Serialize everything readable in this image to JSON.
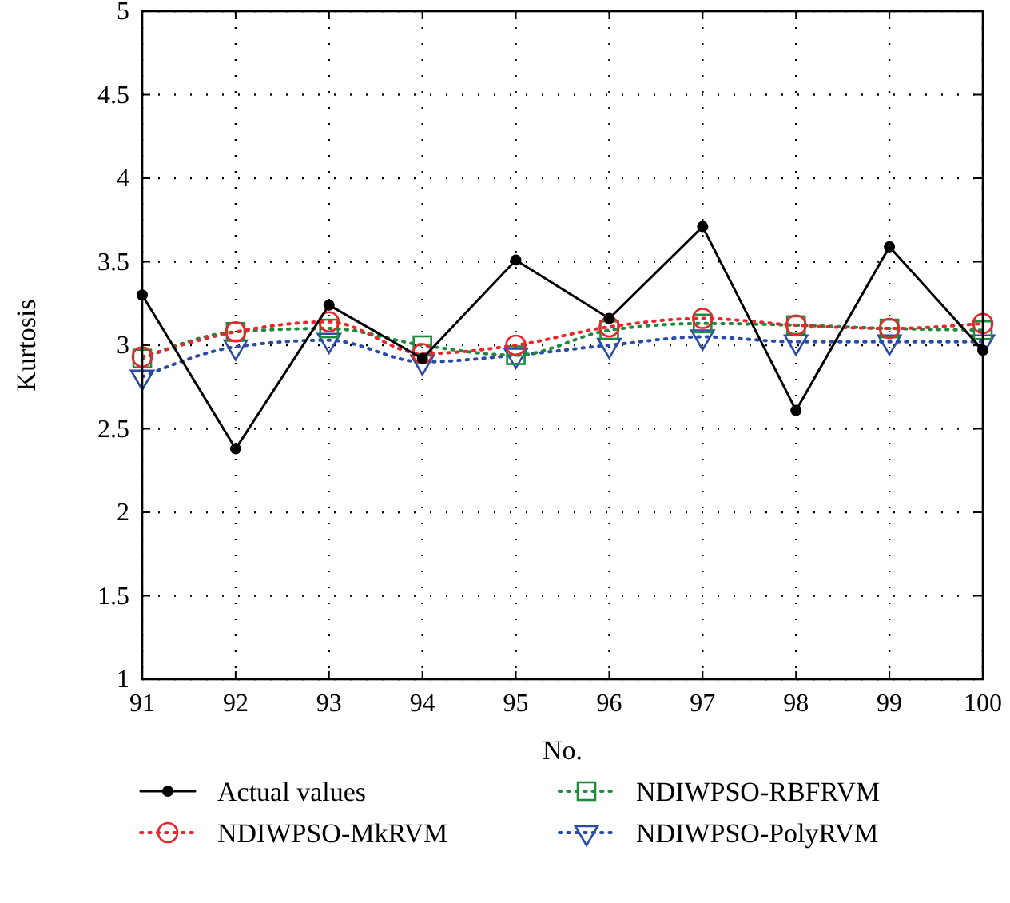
{
  "chart_data": {
    "type": "line",
    "xlabel": "No.",
    "ylabel": "Kurtosis",
    "x": [
      91,
      92,
      93,
      94,
      95,
      96,
      97,
      98,
      99,
      100
    ],
    "xlim": [
      91,
      100
    ],
    "xticks": [
      91,
      92,
      93,
      94,
      95,
      96,
      97,
      98,
      99,
      100
    ],
    "ylim": [
      1,
      5
    ],
    "yticks": [
      1,
      1.5,
      2,
      2.5,
      3,
      3.5,
      4,
      4.5,
      5
    ],
    "grid": true,
    "legend": "bottom",
    "series": [
      {
        "name": "Actual values",
        "color": "#000000",
        "marker": "circle",
        "line_style": "solid",
        "values": [
          3.3,
          2.38,
          3.24,
          2.92,
          3.51,
          3.16,
          3.71,
          2.61,
          3.59,
          2.97
        ]
      },
      {
        "name": "NDIWPSO-MkRVM",
        "color": "#e8262b",
        "marker": "circle",
        "line_style": "dotted",
        "values": [
          2.93,
          3.08,
          3.14,
          2.95,
          3.0,
          3.11,
          3.16,
          3.12,
          3.1,
          3.13
        ]
      },
      {
        "name": "NDIWPSO-RBFRVM",
        "color": "#1e8a3c",
        "marker": "square",
        "line_style": "dotted",
        "values": [
          2.92,
          3.08,
          3.1,
          3.0,
          2.94,
          3.09,
          3.13,
          3.12,
          3.1,
          3.09
        ]
      },
      {
        "name": "NDIWPSO-PolyRVM",
        "color": "#2a4ba8",
        "marker": "triangle",
        "line_style": "dotted",
        "values": [
          2.81,
          2.99,
          3.03,
          2.9,
          2.94,
          3.0,
          3.05,
          3.02,
          3.02,
          3.02
        ]
      }
    ]
  }
}
